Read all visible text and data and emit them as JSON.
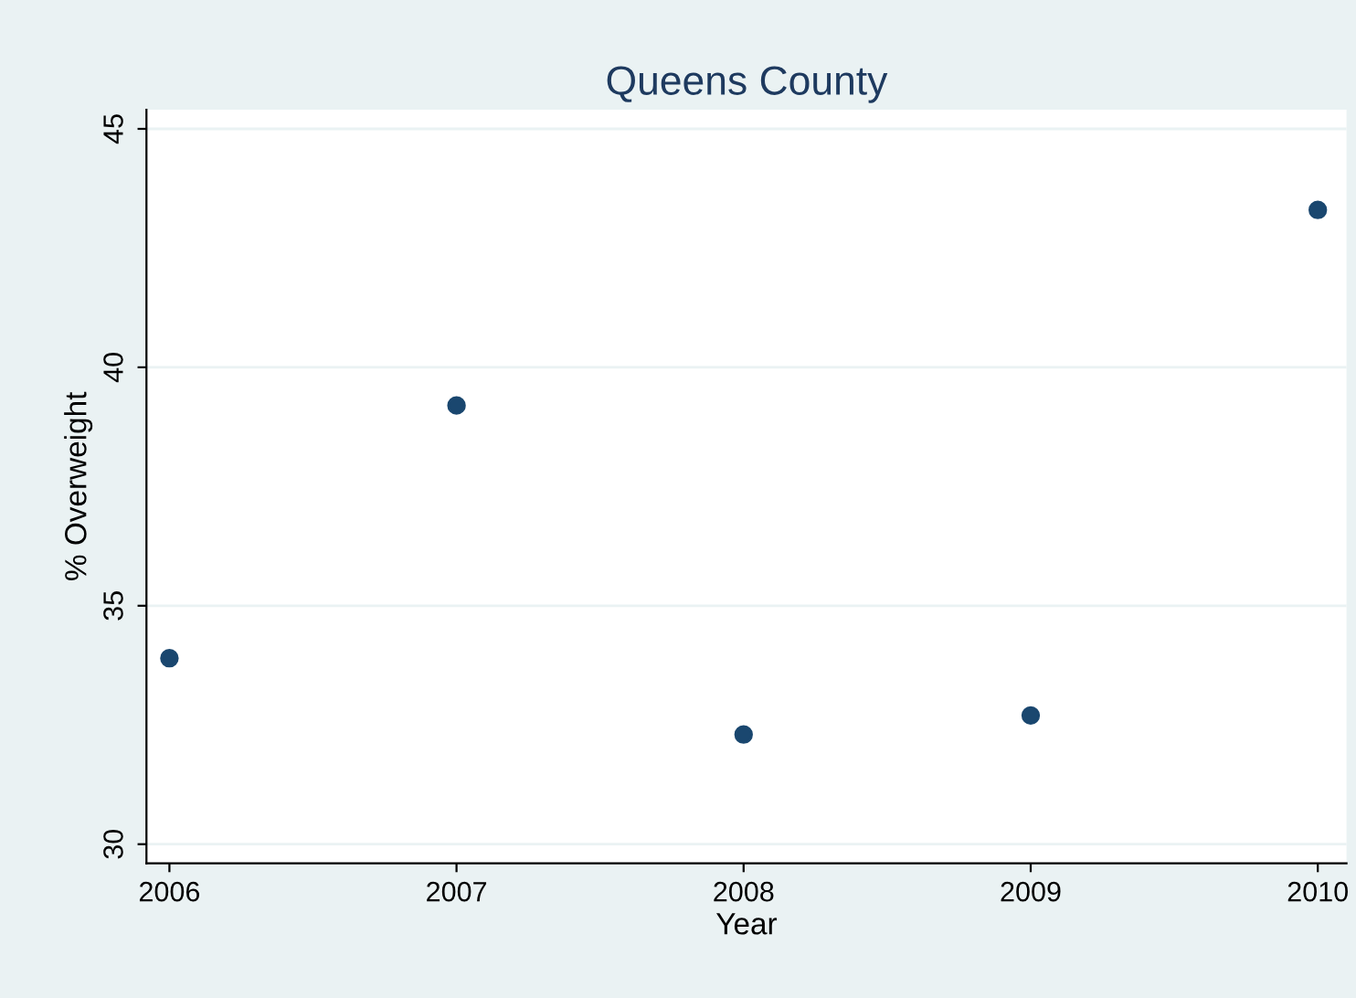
{
  "chart_data": {
    "type": "scatter",
    "title": "Queens County",
    "xlabel": "Year",
    "ylabel": "% Overweight",
    "x": [
      2006,
      2007,
      2008,
      2009,
      2010
    ],
    "series": [
      {
        "color": "#1a476f",
        "values": [
          33.9,
          39.2,
          32.3,
          32.7,
          43.3
        ]
      }
    ],
    "xlim": [
      2005.92,
      2010.1
    ],
    "xticks": [
      2006,
      2007,
      2008,
      2009,
      2010
    ],
    "ylim": [
      29.6,
      45.4
    ],
    "yticks": [
      30,
      35,
      40,
      45
    ],
    "grid": "y",
    "marker": "circle",
    "legend": false
  }
}
